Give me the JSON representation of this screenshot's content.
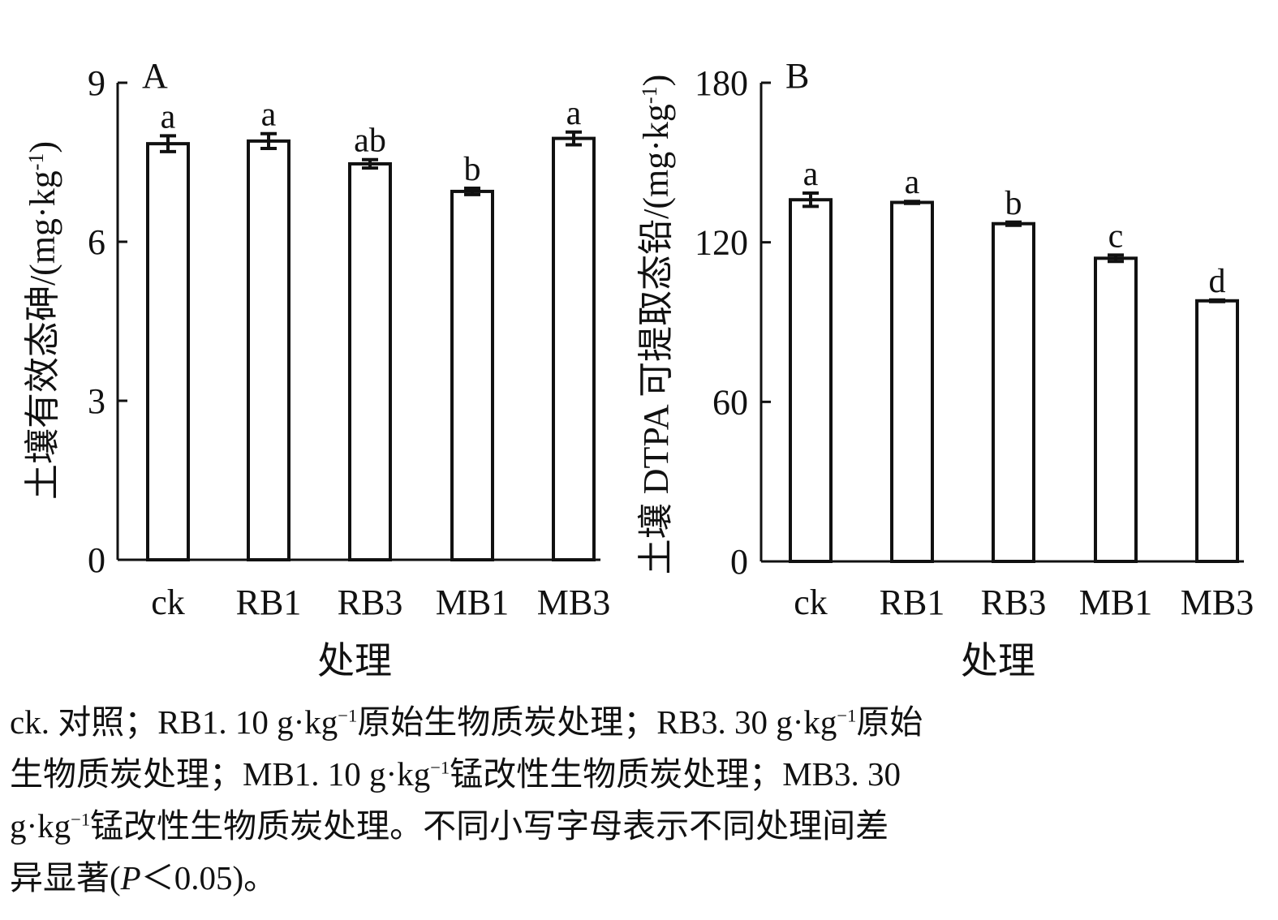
{
  "chart_data": [
    {
      "panel_label": "A",
      "type": "bar",
      "categories": [
        "ck",
        "RB1",
        "RB3",
        "MB1",
        "MB3"
      ],
      "values": [
        7.85,
        7.9,
        7.47,
        6.95,
        7.95
      ],
      "errors": [
        0.15,
        0.14,
        0.08,
        0.06,
        0.12
      ],
      "significance": [
        "a",
        "a",
        "ab",
        "b",
        "a"
      ],
      "ylabel_main": "土壤有效态砷/(mg·kg",
      "ylabel_sup": "-1",
      "ylabel_end": ")",
      "xlabel": "处理",
      "ylim": [
        0,
        9
      ],
      "yticks": [
        "0",
        "3",
        "6",
        "9"
      ]
    },
    {
      "panel_label": "B",
      "type": "bar",
      "categories": [
        "ck",
        "RB1",
        "RB3",
        "MB1",
        "MB3"
      ],
      "values": [
        136,
        135,
        127,
        114,
        98
      ],
      "errors": [
        2.5,
        0.4,
        0.6,
        1.2,
        0.3
      ],
      "significance": [
        "a",
        "a",
        "b",
        "c",
        "d"
      ],
      "ylabel_main": "土壤 DTPA 可提取态铅/(mg·kg",
      "ylabel_sup": "-1",
      "ylabel_end": ")",
      "xlabel": "处理",
      "ylim": [
        0,
        180
      ],
      "yticks": [
        "0",
        "60",
        "120",
        "180"
      ]
    }
  ],
  "caption": {
    "line1_a": "ck. 对照；RB1. 10 g·kg",
    "line1_sup1": "−1",
    "line1_b": "原始生物质炭处理；RB3. 30 g·kg",
    "line1_sup2": "−1",
    "line1_c": "原始",
    "line2_a": "生物质炭处理；MB1. 10 g·kg",
    "line2_sup": "−1",
    "line2_b": "锰改性生物质炭处理；MB3. 30",
    "line3_a": "g·kg",
    "line3_sup": "−1",
    "line3_b": "锰改性生物质炭处理。不同小写字母表示不同处理间差",
    "line4_a": "异显著(",
    "line4_p": "P",
    "line4_b": "＜0.05)。"
  }
}
